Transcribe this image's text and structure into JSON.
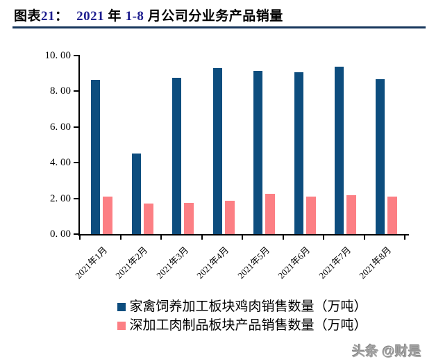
{
  "header": {
    "title_segments": [
      {
        "text": "图表",
        "style": "cn"
      },
      {
        "text": "21",
        "style": "num"
      },
      {
        "text": "：  ",
        "style": "cn"
      },
      {
        "text": "2021 ",
        "style": "num"
      },
      {
        "text": "年 ",
        "style": "cn"
      },
      {
        "text": "1-8 ",
        "style": "num"
      },
      {
        "text": "月公司分业务产品销量",
        "style": "cn"
      }
    ],
    "rule_color": "#17375d",
    "number_color": "#1c1c8e",
    "text_color": "#000000"
  },
  "chart_data": {
    "type": "bar",
    "title": "2021 年 1-8 月公司分业务产品销量",
    "categories": [
      "2021年1月",
      "2021年2月",
      "2021年3月",
      "2021年4月",
      "2021年5月",
      "2021年6月",
      "2021年7月",
      "2021年8月"
    ],
    "series": [
      {
        "name": "家禽饲养加工板块鸡肉销售数量（万吨）",
        "color": "#0d4d7e",
        "values": [
          8.65,
          4.52,
          8.76,
          9.3,
          9.14,
          9.05,
          9.36,
          8.68
        ]
      },
      {
        "name": "深加工肉制品板块产品销售数量（万吨）",
        "color": "#fc7f84",
        "values": [
          2.12,
          1.7,
          1.74,
          1.88,
          2.27,
          2.1,
          2.17,
          2.12
        ]
      }
    ],
    "xlabel": "",
    "ylabel": "",
    "ylim": [
      0,
      10
    ],
    "ytick_step": 2,
    "ytick_labels": [
      "0. 00",
      "2. 00",
      "4. 00",
      "6. 00",
      "8. 00",
      "10. 00"
    ],
    "grid": false,
    "legend_position": "bottom",
    "axis_color": "#000000"
  },
  "watermark": {
    "text": "头条 @财是"
  }
}
